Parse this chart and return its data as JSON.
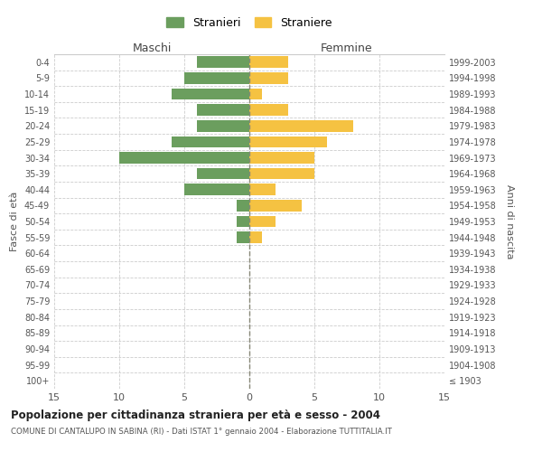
{
  "age_groups": [
    "100+",
    "95-99",
    "90-94",
    "85-89",
    "80-84",
    "75-79",
    "70-74",
    "65-69",
    "60-64",
    "55-59",
    "50-54",
    "45-49",
    "40-44",
    "35-39",
    "30-34",
    "25-29",
    "20-24",
    "15-19",
    "10-14",
    "5-9",
    "0-4"
  ],
  "birth_years": [
    "≤ 1903",
    "1904-1908",
    "1909-1913",
    "1914-1918",
    "1919-1923",
    "1924-1928",
    "1929-1933",
    "1934-1938",
    "1939-1943",
    "1944-1948",
    "1949-1953",
    "1954-1958",
    "1959-1963",
    "1964-1968",
    "1969-1973",
    "1974-1978",
    "1979-1983",
    "1984-1988",
    "1989-1993",
    "1994-1998",
    "1999-2003"
  ],
  "males": [
    0,
    0,
    0,
    0,
    0,
    0,
    0,
    0,
    0,
    1,
    1,
    1,
    5,
    4,
    10,
    6,
    4,
    4,
    6,
    5,
    4
  ],
  "females": [
    0,
    0,
    0,
    0,
    0,
    0,
    0,
    0,
    0,
    1,
    2,
    4,
    2,
    5,
    5,
    6,
    8,
    3,
    1,
    3,
    3
  ],
  "male_color": "#6b9e5e",
  "female_color": "#f5c242",
  "background_color": "#ffffff",
  "grid_color": "#cccccc",
  "title": "Popolazione per cittadinanza straniera per età e sesso - 2004",
  "subtitle": "COMUNE DI CANTALUPO IN SABINA (RI) - Dati ISTAT 1° gennaio 2004 - Elaborazione TUTTITALIA.IT",
  "ylabel_left": "Fasce di età",
  "ylabel_right": "Anni di nascita",
  "xlabel_maschi": "Maschi",
  "xlabel_femmine": "Femmine",
  "legend_males": "Stranieri",
  "legend_females": "Straniere",
  "xlim": 15
}
